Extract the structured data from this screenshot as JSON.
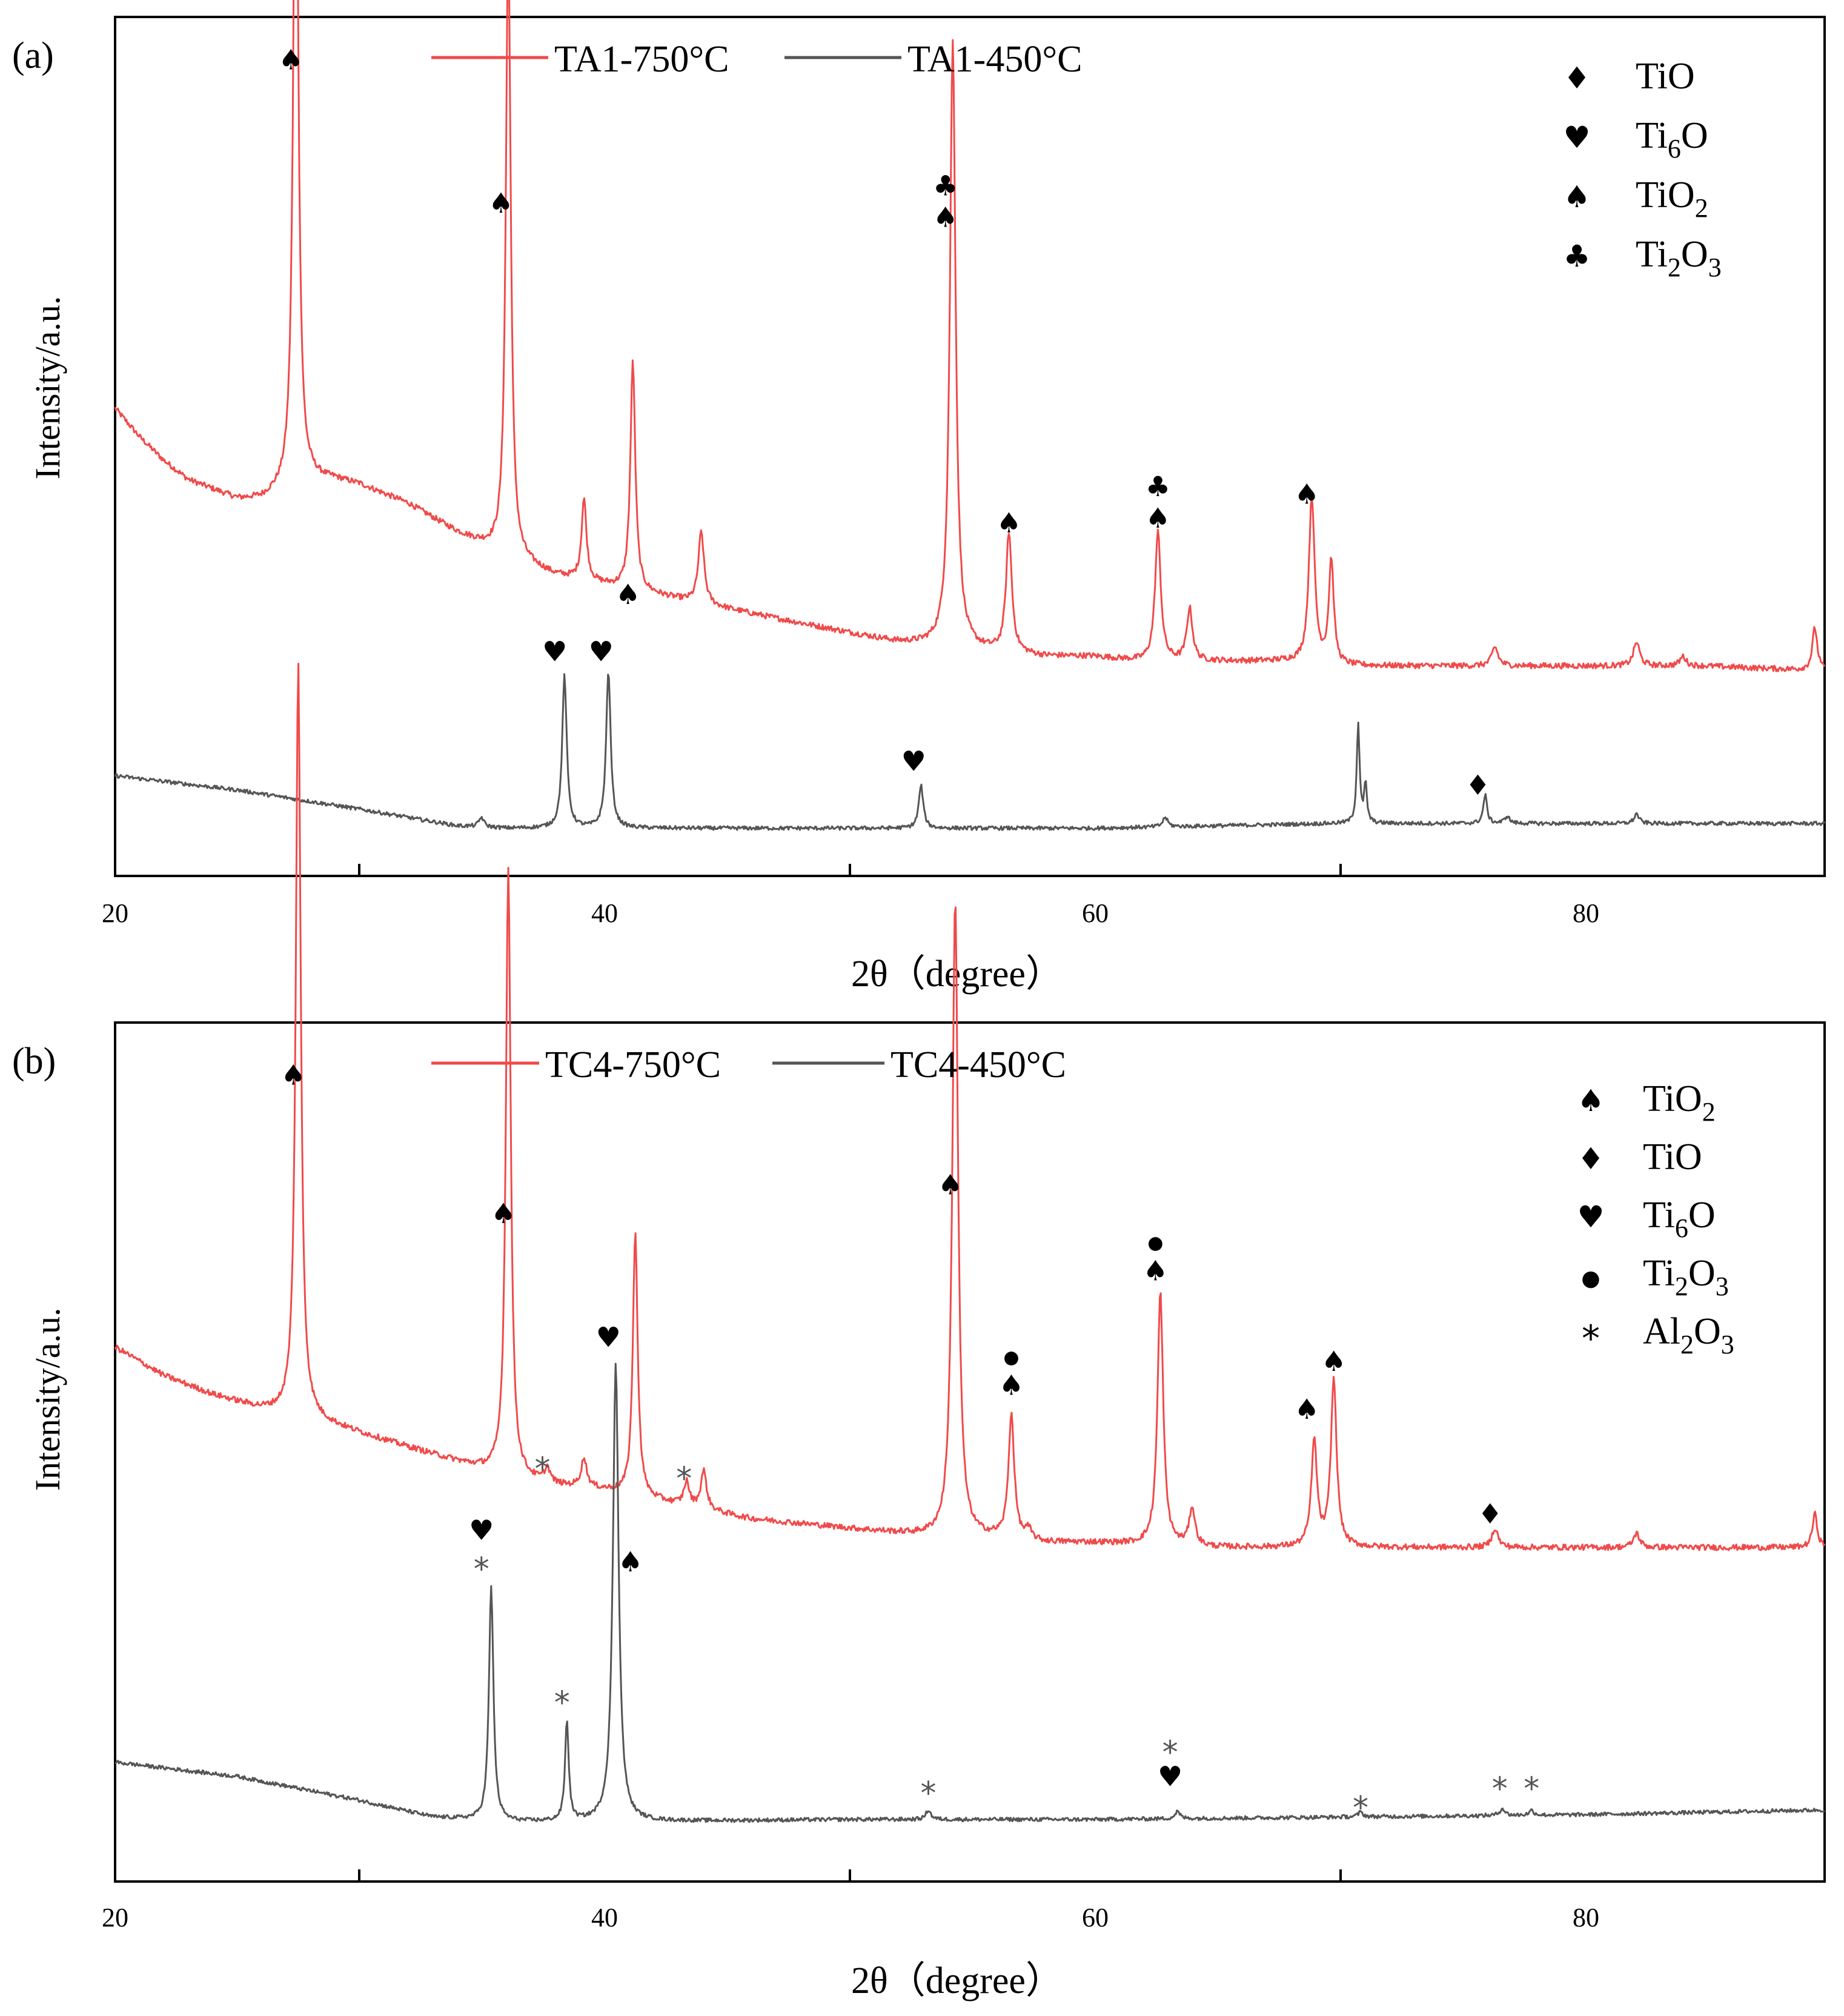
{
  "colors": {
    "red": "#f04a4a",
    "gray": "#555555",
    "axis": "#000000"
  },
  "glyphs": {
    "diamond": "♦",
    "heart": "♥",
    "spade": "♠",
    "club": "♣",
    "dot": "●",
    "star": "*"
  },
  "chart_data": [
    {
      "type": "line",
      "panel_label": "(a)",
      "xlabel": "2θ（degree）",
      "ylabel": "Intensity/a.u.",
      "xlim": [
        20,
        90
      ],
      "ylim": [
        -0.05,
        1.75
      ],
      "xticks": [
        20,
        40,
        60,
        80
      ],
      "tick_labels": [
        "20",
        "40",
        "60",
        "80"
      ],
      "legend_lines": [
        {
          "name": "TA1-750°C",
          "color": "red"
        },
        {
          "name": "TA1-450°C",
          "color": "gray"
        }
      ],
      "phase_legend": [
        {
          "glyph": "diamond",
          "base": "TiO",
          "sub": "",
          "tail": ""
        },
        {
          "glyph": "heart",
          "base": "Ti",
          "sub": "6",
          "tail": "O"
        },
        {
          "glyph": "spade",
          "base": "TiO",
          "sub": "2",
          "tail": ""
        },
        {
          "glyph": "club",
          "base": "Ti",
          "sub": "2",
          "tail": "O",
          "sub2": "3"
        }
      ],
      "series": [
        {
          "name": "TA1-750°C",
          "color": "red",
          "baseline": [
            [
              20,
              0.93
            ],
            [
              21,
              0.87
            ],
            [
              22,
              0.82
            ],
            [
              23,
              0.78
            ],
            [
              24,
              0.76
            ],
            [
              25,
              0.74
            ],
            [
              26,
              0.74
            ],
            [
              27,
              0.76
            ],
            [
              28,
              0.78
            ],
            [
              29,
              0.78
            ],
            [
              30,
              0.77
            ],
            [
              32,
              0.73
            ],
            [
              34,
              0.67
            ],
            [
              36,
              0.62
            ],
            [
              38,
              0.58
            ],
            [
              40,
              0.56
            ],
            [
              42,
              0.54
            ],
            [
              44,
              0.52
            ],
            [
              46,
              0.5
            ],
            [
              48,
              0.48
            ],
            [
              50,
              0.46
            ],
            [
              52,
              0.44
            ],
            [
              54,
              0.43
            ],
            [
              56,
              0.42
            ],
            [
              58,
              0.41
            ],
            [
              60,
              0.41
            ],
            [
              62,
              0.4
            ],
            [
              64,
              0.4
            ],
            [
              66,
              0.4
            ],
            [
              68,
              0.4
            ],
            [
              70,
              0.39
            ],
            [
              75,
              0.39
            ],
            [
              80,
              0.39
            ],
            [
              85,
              0.39
            ],
            [
              90,
              0.38
            ]
          ],
          "peaks": [
            [
              27.4,
              1.6,
              0.12
            ],
            [
              36.1,
              1.3,
              0.12
            ],
            [
              39.2,
              0.17,
              0.12
            ],
            [
              41.2,
              0.48,
              0.12
            ],
            [
              44.0,
              0.15,
              0.14
            ],
            [
              54.3,
              1.27,
              0.14
            ],
            [
              56.6,
              0.25,
              0.14
            ],
            [
              62.7,
              0.27,
              0.14
            ],
            [
              64.0,
              0.11,
              0.14
            ],
            [
              69.0,
              0.35,
              0.14
            ],
            [
              69.8,
              0.22,
              0.12
            ],
            [
              76.5,
              0.04,
              0.15
            ],
            [
              82.3,
              0.05,
              0.15
            ],
            [
              84.2,
              0.02,
              0.15
            ],
            [
              89.6,
              0.09,
              0.12
            ]
          ],
          "noise": 0.006
        },
        {
          "name": "TA1-450°C",
          "color": "gray",
          "baseline": [
            [
              20,
              0.16
            ],
            [
              25,
              0.13
            ],
            [
              30,
              0.09
            ],
            [
              34,
              0.055
            ],
            [
              36,
              0.05
            ],
            [
              40,
              0.05
            ],
            [
              50,
              0.05
            ],
            [
              60,
              0.05
            ],
            [
              70,
              0.06
            ],
            [
              80,
              0.06
            ],
            [
              90,
              0.06
            ]
          ],
          "peaks": [
            [
              35.0,
              0.02,
              0.12
            ],
            [
              38.4,
              0.32,
              0.11
            ],
            [
              40.2,
              0.33,
              0.11
            ],
            [
              53.0,
              0.09,
              0.11
            ],
            [
              63.0,
              0.02,
              0.12
            ],
            [
              70.9,
              0.21,
              0.07
            ],
            [
              71.2,
              0.08,
              0.07
            ],
            [
              76.1,
              0.06,
              0.09
            ],
            [
              77.0,
              0.015,
              0.12
            ],
            [
              82.3,
              0.02,
              0.12
            ]
          ],
          "noise": 0.004
        }
      ],
      "annotations": [
        {
          "x": 27.2,
          "y": 1.64,
          "glyphs": [
            "spade"
          ]
        },
        {
          "x": 35.8,
          "y": 1.34,
          "glyphs": [
            "spade"
          ]
        },
        {
          "x": 41.0,
          "y": 0.52,
          "glyphs": [
            "spade"
          ]
        },
        {
          "x": 54.0,
          "y": 1.31,
          "glyphs": [
            "spade",
            "club"
          ]
        },
        {
          "x": 56.6,
          "y": 0.67,
          "glyphs": [
            "spade"
          ]
        },
        {
          "x": 62.7,
          "y": 0.68,
          "glyphs": [
            "spade",
            "club"
          ]
        },
        {
          "x": 68.8,
          "y": 0.73,
          "glyphs": [
            "spade"
          ]
        },
        {
          "x": 38.0,
          "y": 0.4,
          "glyphs": [
            "heart"
          ]
        },
        {
          "x": 39.9,
          "y": 0.4,
          "glyphs": [
            "heart"
          ]
        },
        {
          "x": 52.7,
          "y": 0.17,
          "glyphs": [
            "heart"
          ]
        },
        {
          "x": 75.8,
          "y": 0.12,
          "glyphs": [
            "diamond"
          ]
        }
      ]
    },
    {
      "type": "line",
      "panel_label": "(b)",
      "xlabel": "2θ（degree）",
      "ylabel": "Intensity/a.u.",
      "xlim": [
        20,
        90
      ],
      "ylim": [
        -0.05,
        1.75
      ],
      "xticks": [
        20,
        40,
        60,
        80
      ],
      "tick_labels": [
        "20",
        "40",
        "60",
        "80"
      ],
      "legend_lines": [
        {
          "name": "TC4-750°C",
          "color": "red"
        },
        {
          "name": "TC4-450°C",
          "color": "gray"
        }
      ],
      "phase_legend": [
        {
          "glyph": "spade",
          "base": "TiO",
          "sub": "2",
          "tail": ""
        },
        {
          "glyph": "diamond",
          "base": "TiO",
          "sub": "",
          "tail": ""
        },
        {
          "glyph": "heart",
          "base": "Ti",
          "sub": "6",
          "tail": "O"
        },
        {
          "glyph": "dot",
          "base": "Ti",
          "sub": "2",
          "tail": "O",
          "sub2": "3"
        },
        {
          "glyph": "star",
          "base": "Al",
          "sub": "2",
          "tail": "O",
          "sub2": "3"
        }
      ],
      "series": [
        {
          "name": "TC4-750°C",
          "color": "red",
          "baseline": [
            [
              20,
              1.07
            ],
            [
              22,
              1.01
            ],
            [
              24,
              0.97
            ],
            [
              26,
              0.94
            ],
            [
              28,
              0.92
            ],
            [
              30,
              0.89
            ],
            [
              32,
              0.86
            ],
            [
              34,
              0.83
            ],
            [
              36,
              0.8
            ],
            [
              38,
              0.78
            ],
            [
              40,
              0.77
            ],
            [
              42,
              0.75
            ],
            [
              44,
              0.73
            ],
            [
              46,
              0.71
            ],
            [
              48,
              0.7
            ],
            [
              50,
              0.69
            ],
            [
              52,
              0.68
            ],
            [
              54,
              0.67
            ],
            [
              56,
              0.67
            ],
            [
              58,
              0.66
            ],
            [
              60,
              0.66
            ],
            [
              65,
              0.65
            ],
            [
              70,
              0.65
            ],
            [
              75,
              0.65
            ],
            [
              80,
              0.65
            ],
            [
              85,
              0.65
            ],
            [
              90,
              0.65
            ]
          ],
          "peaks": [
            [
              27.5,
              1.58,
              0.12
            ],
            [
              36.1,
              1.28,
              0.12
            ],
            [
              37.7,
              0.03,
              0.14
            ],
            [
              39.2,
              0.06,
              0.14
            ],
            [
              41.3,
              0.55,
              0.12
            ],
            [
              43.4,
              0.05,
              0.13
            ],
            [
              44.1,
              0.08,
              0.14
            ],
            [
              54.4,
              1.34,
              0.14
            ],
            [
              56.7,
              0.26,
              0.14
            ],
            [
              57.4,
              0.02,
              0.15
            ],
            [
              62.8,
              0.53,
              0.14
            ],
            [
              64.1,
              0.08,
              0.14
            ],
            [
              69.1,
              0.22,
              0.14
            ],
            [
              69.9,
              0.35,
              0.14
            ],
            [
              76.5,
              0.04,
              0.15
            ],
            [
              82.3,
              0.03,
              0.15
            ],
            [
              89.6,
              0.07,
              0.12
            ]
          ],
          "noise": 0.006
        },
        {
          "name": "TC4-450°C",
          "color": "gray",
          "baseline": [
            [
              20,
              0.2
            ],
            [
              25,
              0.17
            ],
            [
              30,
              0.12
            ],
            [
              33,
              0.085
            ],
            [
              36,
              0.075
            ],
            [
              40,
              0.075
            ],
            [
              50,
              0.08
            ],
            [
              60,
              0.08
            ],
            [
              70,
              0.085
            ],
            [
              80,
              0.09
            ],
            [
              90,
              0.1
            ]
          ],
          "peaks": [
            [
              35.4,
              0.49,
              0.11
            ],
            [
              38.5,
              0.21,
              0.09
            ],
            [
              40.5,
              0.96,
              0.14
            ],
            [
              53.3,
              0.02,
              0.12
            ],
            [
              63.5,
              0.015,
              0.12
            ],
            [
              71.0,
              0.01,
              0.12
            ],
            [
              76.8,
              0.015,
              0.12
            ],
            [
              78.0,
              0.01,
              0.12
            ]
          ],
          "noise": 0.004
        }
      ],
      "annotations": [
        {
          "x": 27.3,
          "y": 1.62,
          "glyphs": [
            "spade"
          ]
        },
        {
          "x": 35.9,
          "y": 1.33,
          "glyphs": [
            "spade"
          ]
        },
        {
          "x": 41.1,
          "y": 0.6,
          "glyphs": [
            "spade"
          ]
        },
        {
          "x": 54.2,
          "y": 1.39,
          "glyphs": [
            "spade"
          ]
        },
        {
          "x": 56.7,
          "y": 0.97,
          "glyphs": [
            "spade",
            "dot"
          ]
        },
        {
          "x": 62.6,
          "y": 1.21,
          "glyphs": [
            "spade",
            "dot"
          ]
        },
        {
          "x": 68.8,
          "y": 0.92,
          "glyphs": [
            "spade"
          ]
        },
        {
          "x": 69.9,
          "y": 1.02,
          "glyphs": [
            "spade"
          ]
        },
        {
          "x": 37.5,
          "y": 0.81,
          "glyphs": [
            "star"
          ]
        },
        {
          "x": 43.3,
          "y": 0.79,
          "glyphs": [
            "star"
          ]
        },
        {
          "x": 76.3,
          "y": 0.7,
          "glyphs": [
            "diamond"
          ]
        },
        {
          "x": 35.0,
          "y": 0.6,
          "glyphs": [
            "star",
            "heart"
          ]
        },
        {
          "x": 38.3,
          "y": 0.32,
          "glyphs": [
            "star"
          ]
        },
        {
          "x": 40.2,
          "y": 1.07,
          "glyphs": [
            "heart"
          ]
        },
        {
          "x": 53.3,
          "y": 0.13,
          "glyphs": [
            "star"
          ]
        },
        {
          "x": 63.2,
          "y": 0.15,
          "glyphs": [
            "heart",
            "star"
          ]
        },
        {
          "x": 71.0,
          "y": 0.1,
          "glyphs": [
            "star"
          ]
        },
        {
          "x": 76.7,
          "y": 0.14,
          "glyphs": [
            "star"
          ]
        },
        {
          "x": 78.0,
          "y": 0.14,
          "glyphs": [
            "star"
          ]
        }
      ]
    }
  ]
}
